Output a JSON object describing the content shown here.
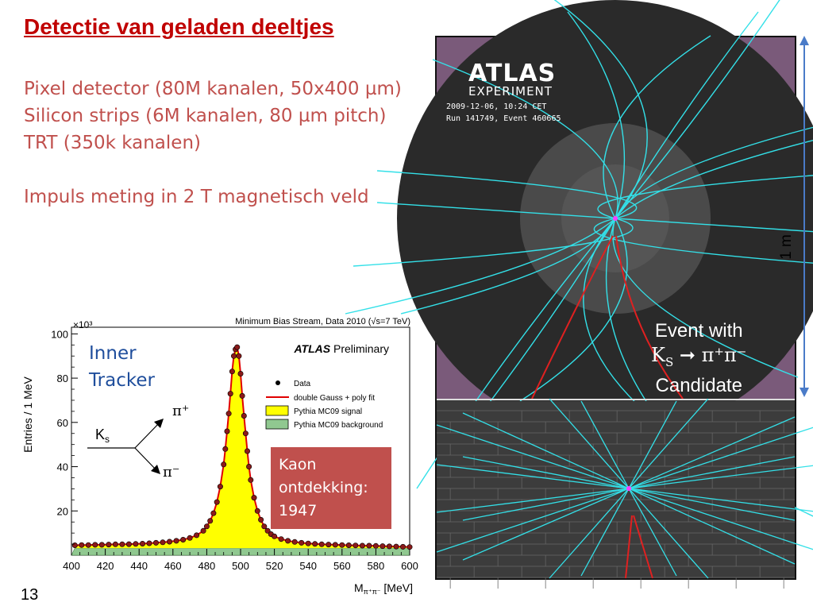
{
  "slide": {
    "title": "Detectie van geladen deeltjes",
    "bullets": [
      "Pixel detector (80M kanalen, 50x400 µm)",
      "Silicon strips (6M kanalen, 80 µm pitch)",
      "TRT (350k kanalen)",
      "Impuls meting in 2 T magnetisch veld"
    ],
    "page_number": "13"
  },
  "annotations": {
    "inner_tracker": [
      "Inner",
      "Tracker"
    ],
    "kaon_box": [
      "Kaon",
      "ontdekking:",
      "1947"
    ],
    "scale": "1 m",
    "diagram": {
      "ks": "K",
      "ks_sub": "s",
      "pi_plus": "π⁺",
      "pi_minus": "π⁻"
    }
  },
  "event_display": {
    "logo_line1": "ATLAS",
    "logo_line2": "EXPERIMENT",
    "date": "2009-12-06, 10:24 CET",
    "run": "Run 141749, Event 460665",
    "caption_line1": "Event with",
    "caption_line2": "K",
    "caption_sub": "S",
    "caption_arrow": " ➞ π⁺π⁻",
    "caption_line3": "Candidate"
  },
  "colors": {
    "title": "#c00000",
    "bullets": "#c0504d",
    "inner_tracker": "#1f4e9c",
    "kaon_box": "#c0504d",
    "signal": "#ffff00",
    "background": "#90c890",
    "fit": "#e00000",
    "tracks": "#33e0e8"
  },
  "chart_data": {
    "type": "bar",
    "title": "Minimum Bias Stream, Data 2010 (√s=7 TeV)",
    "subtitle": "ATLAS Preliminary",
    "exponent_label": "×10³",
    "xlabel": "M",
    "xlabel_sub": "π⁺π⁻",
    "xlabel_unit": " [MeV]",
    "ylabel": "Entries / 1 MeV",
    "xlim": [
      400,
      600
    ],
    "ylim": [
      0,
      103
    ],
    "xticks": [
      400,
      420,
      440,
      460,
      480,
      500,
      520,
      540,
      560,
      580,
      600
    ],
    "yticks": [
      20,
      40,
      60,
      80,
      100
    ],
    "legend": [
      "Data",
      "double Gauss + poly fit",
      "Pythia MC09 signal",
      "Pythia MC09 background"
    ],
    "legend_position": "top-right",
    "background_level": 3.2,
    "peak": 497.5,
    "peak_height": 94,
    "data_points": [
      [
        402,
        4.5
      ],
      [
        406,
        4.6
      ],
      [
        410,
        4.6
      ],
      [
        414,
        4.7
      ],
      [
        418,
        4.7
      ],
      [
        422,
        4.8
      ],
      [
        426,
        4.9
      ],
      [
        430,
        4.9
      ],
      [
        434,
        5.0
      ],
      [
        438,
        5.1
      ],
      [
        442,
        5.2
      ],
      [
        446,
        5.4
      ],
      [
        450,
        5.6
      ],
      [
        454,
        5.8
      ],
      [
        458,
        6.1
      ],
      [
        462,
        6.5
      ],
      [
        466,
        7.0
      ],
      [
        470,
        7.8
      ],
      [
        474,
        9.0
      ],
      [
        478,
        11.0
      ],
      [
        480,
        13
      ],
      [
        482,
        15.5
      ],
      [
        484,
        19
      ],
      [
        486,
        24
      ],
      [
        488,
        31
      ],
      [
        490,
        41
      ],
      [
        491,
        48
      ],
      [
        492,
        56
      ],
      [
        493,
        64
      ],
      [
        494,
        73
      ],
      [
        495,
        83
      ],
      [
        496,
        90
      ],
      [
        497,
        93
      ],
      [
        498,
        94
      ],
      [
        499,
        90
      ],
      [
        500,
        82
      ],
      [
        501,
        72
      ],
      [
        502,
        63
      ],
      [
        503,
        55
      ],
      [
        504,
        47
      ],
      [
        505,
        40
      ],
      [
        506,
        34
      ],
      [
        508,
        26
      ],
      [
        510,
        20
      ],
      [
        512,
        16
      ],
      [
        514,
        13
      ],
      [
        516,
        11
      ],
      [
        518,
        9.5
      ],
      [
        520,
        8.5
      ],
      [
        524,
        7.3
      ],
      [
        528,
        6.5
      ],
      [
        532,
        6.0
      ],
      [
        536,
        5.6
      ],
      [
        540,
        5.3
      ],
      [
        544,
        5.1
      ],
      [
        548,
        4.9
      ],
      [
        552,
        4.8
      ],
      [
        556,
        4.7
      ],
      [
        560,
        4.6
      ],
      [
        564,
        4.5
      ],
      [
        568,
        4.4
      ],
      [
        572,
        4.3
      ],
      [
        576,
        4.3
      ],
      [
        580,
        4.2
      ],
      [
        584,
        4.1
      ],
      [
        588,
        4.0
      ],
      [
        592,
        3.9
      ],
      [
        596,
        3.8
      ],
      [
        600,
        3.7
      ]
    ]
  }
}
